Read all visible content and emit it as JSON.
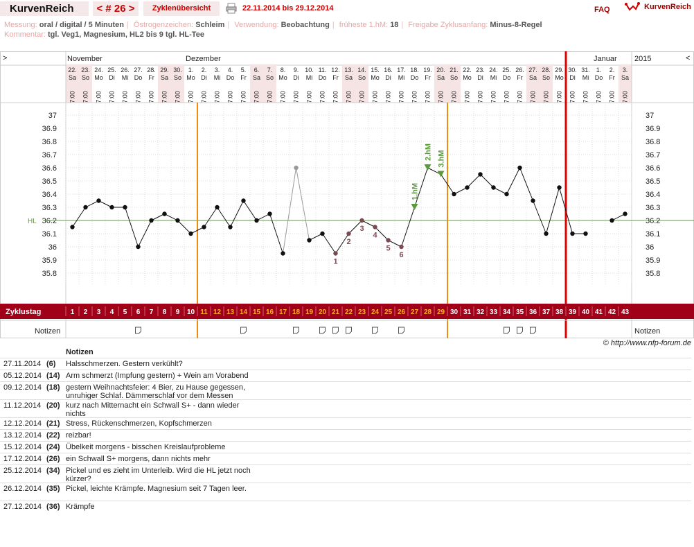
{
  "topbar": {
    "title": "KurvenReich",
    "cycle_nav": "< # 26 >",
    "overview_label": "Zyklenübersicht",
    "date_range": "22.11.2014 bis 29.12.2014",
    "faq": "FAQ",
    "logo_text": "KurvenReich",
    "print_icon": "printer-icon",
    "logo_icon": "kurvenreich-logo-icon"
  },
  "meta": {
    "measurement_label": "Messung:",
    "measurement_value": "oral / digital / 5 Minuten",
    "estrogen_label": "Östrogenzeichen:",
    "estrogen_value": "Schleim",
    "usage_label": "Verwendung:",
    "usage_value": "Beobachtung",
    "earliest_label": "früheste 1.hM:",
    "earliest_value": "18",
    "release_label": "Freigabe Zyklusanfang:",
    "release_value": "Minus-8-Regel",
    "comment_label": "Kommentar:",
    "comment_value": "tgl. Veg1, Magnesium, HL2 bis 9 tgl. HL-Tee"
  },
  "chart_data": {
    "type": "line",
    "months": [
      {
        "label": "November",
        "start_index": 0
      },
      {
        "label": "Dezember",
        "start_index": 9
      },
      {
        "label": "Januar",
        "start_index": 40
      }
    ],
    "year_label": "2015",
    "nav_left": ">",
    "nav_right": "<",
    "days": [
      {
        "d": "22.",
        "w": "Sa",
        "we": true
      },
      {
        "d": "23.",
        "w": "So",
        "we": true
      },
      {
        "d": "24.",
        "w": "Mo",
        "we": false
      },
      {
        "d": "25.",
        "w": "Di",
        "we": false
      },
      {
        "d": "26.",
        "w": "Mi",
        "we": false
      },
      {
        "d": "27.",
        "w": "Do",
        "we": false
      },
      {
        "d": "28.",
        "w": "Fr",
        "we": false
      },
      {
        "d": "29.",
        "w": "Sa",
        "we": true
      },
      {
        "d": "30.",
        "w": "So",
        "we": true
      },
      {
        "d": "1.",
        "w": "Mo",
        "we": false
      },
      {
        "d": "2.",
        "w": "Di",
        "we": false
      },
      {
        "d": "3.",
        "w": "Mi",
        "we": false
      },
      {
        "d": "4.",
        "w": "Do",
        "we": false
      },
      {
        "d": "5.",
        "w": "Fr",
        "we": false
      },
      {
        "d": "6.",
        "w": "Sa",
        "we": true
      },
      {
        "d": "7.",
        "w": "So",
        "we": true
      },
      {
        "d": "8.",
        "w": "Mo",
        "we": false
      },
      {
        "d": "9.",
        "w": "Di",
        "we": false
      },
      {
        "d": "10.",
        "w": "Mi",
        "we": false
      },
      {
        "d": "11.",
        "w": "Do",
        "we": false
      },
      {
        "d": "12.",
        "w": "Fr",
        "we": false
      },
      {
        "d": "13.",
        "w": "Sa",
        "we": true
      },
      {
        "d": "14.",
        "w": "So",
        "we": true
      },
      {
        "d": "15.",
        "w": "Mo",
        "we": false
      },
      {
        "d": "16.",
        "w": "Di",
        "we": false
      },
      {
        "d": "17.",
        "w": "Mi",
        "we": false
      },
      {
        "d": "18.",
        "w": "Do",
        "we": false
      },
      {
        "d": "19.",
        "w": "Fr",
        "we": false
      },
      {
        "d": "20.",
        "w": "Sa",
        "we": true
      },
      {
        "d": "21.",
        "w": "So",
        "we": true
      },
      {
        "d": "22.",
        "w": "Mo",
        "we": false
      },
      {
        "d": "23.",
        "w": "Di",
        "we": false
      },
      {
        "d": "24.",
        "w": "Mi",
        "we": false
      },
      {
        "d": "25.",
        "w": "Do",
        "we": false
      },
      {
        "d": "26.",
        "w": "Fr",
        "we": false
      },
      {
        "d": "27.",
        "w": "Sa",
        "we": true
      },
      {
        "d": "28.",
        "w": "So",
        "we": true
      },
      {
        "d": "29.",
        "w": "Mo",
        "we": false
      },
      {
        "d": "30.",
        "w": "Di",
        "we": false
      },
      {
        "d": "31.",
        "w": "Mi",
        "we": false
      },
      {
        "d": "1.",
        "w": "Do",
        "we": false
      },
      {
        "d": "2.",
        "w": "Fr",
        "we": false
      },
      {
        "d": "3.",
        "w": "Sa",
        "we": true
      }
    ],
    "time_label": "7:00",
    "y_ticks": [
      "37",
      "36.9",
      "36.8",
      "36.7",
      "36.6",
      "36.5",
      "36.4",
      "36.3",
      "36.2",
      "36.1",
      "36",
      "35.9",
      "35.8"
    ],
    "ylim": [
      35.8,
      37.0
    ],
    "hl_label": "HL",
    "hl_value": 36.2,
    "temps": [
      36.15,
      36.3,
      36.35,
      36.3,
      36.3,
      36.0,
      36.2,
      36.25,
      36.2,
      36.1,
      36.15,
      36.3,
      36.15,
      36.35,
      36.2,
      36.25,
      35.95,
      36.6,
      36.05,
      36.1,
      35.95,
      36.1,
      36.2,
      36.15,
      36.05,
      36.0,
      36.3,
      36.6,
      36.55,
      36.4,
      36.45,
      36.55,
      36.45,
      36.4,
      36.6,
      36.35,
      36.1,
      36.45,
      36.1,
      36.1,
      null,
      36.2,
      36.25
    ],
    "excluded_index": 17,
    "low_labels": [
      {
        "index": 20,
        "label": "1"
      },
      {
        "index": 21,
        "label": "2"
      },
      {
        "index": 22,
        "label": "3"
      },
      {
        "index": 23,
        "label": "4"
      },
      {
        "index": 24,
        "label": "5"
      },
      {
        "index": 25,
        "label": "6"
      }
    ],
    "high_labels": [
      {
        "index": 26,
        "label": "1.hM"
      },
      {
        "index": 27,
        "label": "2.hM"
      },
      {
        "index": 28,
        "label": "3.hM"
      }
    ],
    "orange_lines_after_index": [
      9,
      28
    ],
    "red_line_after_index": 37,
    "cycle_day_label": "Zyklustag",
    "cycle_days": [
      "1",
      "2",
      "3",
      "4",
      "5",
      "6",
      "7",
      "8",
      "9",
      "10",
      "11",
      "12",
      "13",
      "14",
      "15",
      "16",
      "17",
      "18",
      "19",
      "20",
      "21",
      "22",
      "23",
      "24",
      "25",
      "26",
      "27",
      "28",
      "29",
      "30",
      "31",
      "32",
      "33",
      "34",
      "35",
      "36",
      "37",
      "38",
      "39",
      "40",
      "41",
      "42",
      "43"
    ],
    "notes_row_label": "Notizen",
    "note_indices": [
      5,
      13,
      17,
      19,
      20,
      21,
      23,
      25,
      33,
      34,
      35
    ]
  },
  "copyright": "© http://www.nfp-forum.de",
  "notes": {
    "header": "Notizen",
    "rows": [
      {
        "date": "27.11.2014",
        "day": "(6)",
        "text": "Halsschmerzen. Gestern verkühlt?"
      },
      {
        "date": "05.12.2014",
        "day": "(14)",
        "text": "Arm schmerzt (Impfung gestern) + Wein am Vorabend"
      },
      {
        "date": "09.12.2014",
        "day": "(18)",
        "text": "gestern Weihnachtsfeier: 4 Bier, zu Hause gegessen, unruhiger Schlaf. Dämmerschlaf vor dem Messen"
      },
      {
        "date": "11.12.2014",
        "day": "(20)",
        "text": "kurz nach Mitternacht ein Schwall S+ - dann wieder nichts"
      },
      {
        "date": "12.12.2014",
        "day": "(21)",
        "text": "Stress, Rückenschmerzen, Kopfschmerzen"
      },
      {
        "date": "13.12.2014",
        "day": "(22)",
        "text": "reizbar!"
      },
      {
        "date": "15.12.2014",
        "day": "(24)",
        "text": "Übelkeit morgens - bisschen  Kreislaufprobleme"
      },
      {
        "date": "17.12.2014",
        "day": "(26)",
        "text": "ein Schwall S+ morgens, dann nichts mehr"
      },
      {
        "date": "25.12.2014",
        "day": "(34)",
        "text": "Pickel und es zieht im Unterleib. Wird die HL jetzt noch kürzer?"
      },
      {
        "date": "26.12.2014",
        "day": "(35)",
        "text": "Pickel, leichte Krämpfe. Magnesium seit 7 Tagen leer."
      },
      {
        "date": "27.12.2014",
        "day": "(36)",
        "text": "Krämpfe"
      }
    ]
  }
}
